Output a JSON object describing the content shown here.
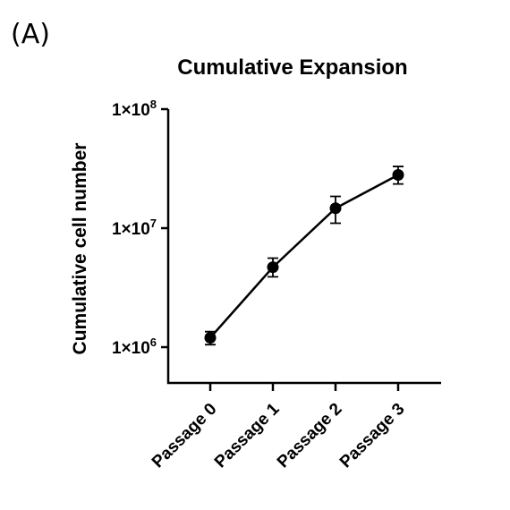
{
  "panel_label": "(A)",
  "chart_data": {
    "type": "line",
    "title": "Cumulative Expansion",
    "xlabel": "",
    "ylabel": "Cumulative cell number",
    "yscale": "log",
    "ylim": [
      500000,
      100000000
    ],
    "y_ticks": [
      {
        "value": 1000000,
        "base": "1×10",
        "exp": "6"
      },
      {
        "value": 10000000,
        "base": "1×10",
        "exp": "7"
      },
      {
        "value": 100000000,
        "base": "1×10",
        "exp": "8"
      }
    ],
    "categories": [
      "Passage 0",
      "Passage 1",
      "Passage 2",
      "Passage 3"
    ],
    "series": [
      {
        "values": [
          1200000,
          4700000,
          14700000,
          28000000
        ],
        "error_low": [
          1050000,
          3900000,
          11000000,
          23500000
        ],
        "error_high": [
          1350000,
          5600000,
          18500000,
          33000000
        ]
      }
    ],
    "grid": false,
    "legend": "none",
    "colors": {
      "line": "#000000",
      "marker": "#000000"
    }
  }
}
